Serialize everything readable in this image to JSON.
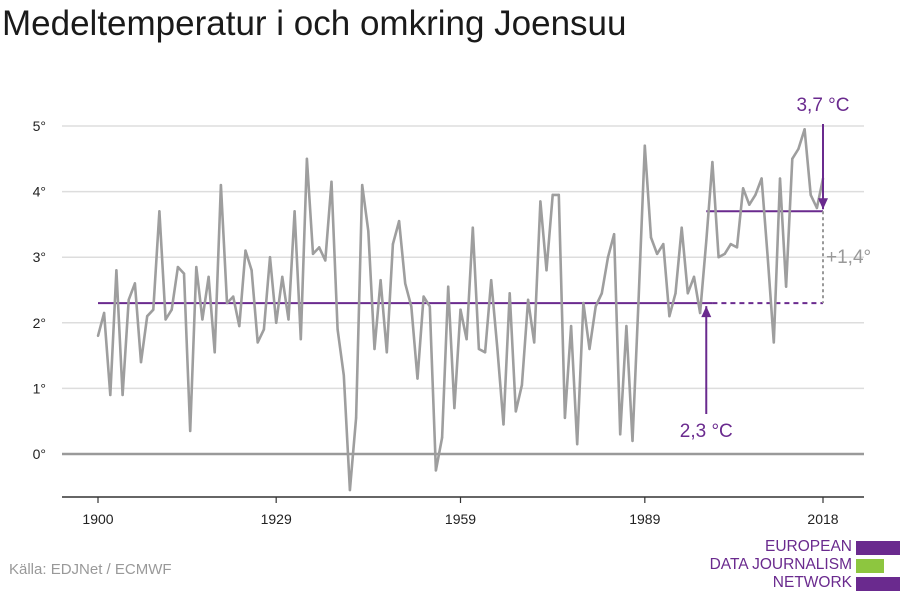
{
  "title": "Medeltemperatur i och omkring Joensuu",
  "source": "Källa: EDJNet / ECMWF",
  "logo": {
    "lines": [
      "EUROPEAN",
      "DATA JOURNALISM",
      "NETWORK"
    ],
    "colors": {
      "purple": "#6a2a8e",
      "green": "#8dc63f"
    }
  },
  "colors": {
    "series": "#9e9e9e",
    "reference": "#6a2a8e",
    "annotation": "#6a2a8e",
    "delta": "#999999",
    "grid": "#dddddd",
    "axis": "#333333"
  },
  "chart_data": {
    "type": "line",
    "title": "Medeltemperatur i och omkring Joensuu",
    "xlabel": "",
    "ylabel": "",
    "x_ticks": [
      1900,
      1929,
      1959,
      1989,
      2018
    ],
    "y_ticks": [
      0,
      1,
      2,
      3,
      4,
      5
    ],
    "y_tick_labels": [
      "0°",
      "1°",
      "2°",
      "3°",
      "4°",
      "5°"
    ],
    "xlim": [
      1900,
      2018
    ],
    "ylim": [
      -0.6,
      5.4
    ],
    "grid": "horizontal",
    "series": [
      {
        "x_start": 1900,
        "values": [
          1.8,
          2.15,
          0.9,
          2.8,
          0.9,
          2.35,
          2.6,
          1.4,
          2.1,
          2.2,
          3.7,
          2.05,
          2.2,
          2.85,
          2.75,
          0.35,
          2.85,
          2.05,
          2.7,
          1.55,
          4.1,
          2.3,
          2.4,
          1.95,
          3.1,
          2.8,
          1.7,
          1.9,
          3.0,
          2.0,
          2.7,
          2.05,
          3.7,
          1.75,
          4.5,
          3.05,
          3.15,
          2.95,
          4.15,
          1.9,
          1.2,
          -0.55,
          0.55,
          4.1,
          3.4,
          1.6,
          2.65,
          1.55,
          3.2,
          3.55,
          2.6,
          2.25,
          1.15,
          2.4,
          2.25,
          -0.25,
          0.25,
          2.55,
          0.7,
          2.2,
          1.75,
          3.45,
          1.6,
          1.55,
          2.65,
          1.6,
          0.45,
          2.45,
          0.65,
          1.05,
          2.35,
          1.7,
          3.85,
          2.8,
          3.95,
          3.95,
          0.55,
          1.95,
          0.15,
          2.3,
          1.6,
          2.25,
          2.45,
          3.0,
          3.35,
          0.3,
          1.95,
          0.2,
          2.4,
          4.7,
          3.3,
          3.05,
          3.2,
          2.1,
          2.45,
          3.45,
          2.45,
          2.7,
          2.15,
          3.25,
          4.45,
          3.0,
          3.05,
          3.2,
          3.15,
          4.05,
          3.8,
          3.95,
          4.2,
          3.0,
          1.7,
          4.2,
          2.55,
          4.5,
          4.65,
          4.95,
          3.95,
          3.75,
          4.2
        ]
      }
    ],
    "reference": {
      "baseline": 2.3,
      "baseline_label": "2,3 °C",
      "recent": 3.7,
      "recent_label": "3,7 °C",
      "recent_period": [
        1999,
        2018
      ],
      "baseline_period": [
        1900,
        2000
      ],
      "delta_label": "+1,4°"
    }
  }
}
